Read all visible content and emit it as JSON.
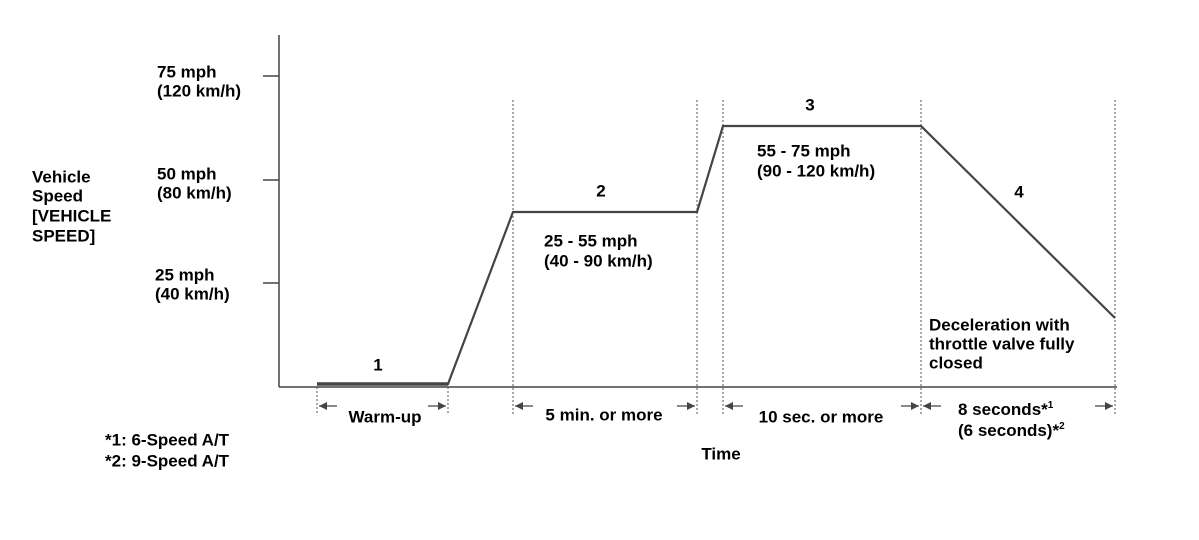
{
  "y_axis": {
    "title": [
      "Vehicle",
      "Speed",
      "[VEHICLE",
      "SPEED]"
    ],
    "ticks": [
      {
        "mph": "75 mph",
        "kmh": "(120 km/h)"
      },
      {
        "mph": "50 mph",
        "kmh": "(80 km/h)"
      },
      {
        "mph": "25 mph",
        "kmh": "(40 km/h)"
      }
    ]
  },
  "x_axis": {
    "title": "Time"
  },
  "phases": [
    {
      "number": "1",
      "duration": "Warm-up"
    },
    {
      "number": "2",
      "speed": [
        "25 - 55 mph",
        "(40 - 90 km/h)"
      ],
      "duration": "5 min. or more"
    },
    {
      "number": "3",
      "speed": [
        "55 - 75 mph",
        "(90 - 120 km/h)"
      ],
      "duration": "10 sec. or more"
    },
    {
      "number": "4",
      "note": [
        "Deceleration with",
        "throttle valve fully",
        "closed"
      ],
      "duration": [
        {
          "text": "8 seconds*",
          "sup": "1"
        },
        {
          "text": "(6 seconds)*",
          "sup": "2"
        }
      ]
    }
  ],
  "footnotes": [
    "*1: 6-Speed A/T",
    "*2: 9-Speed A/T"
  ]
}
